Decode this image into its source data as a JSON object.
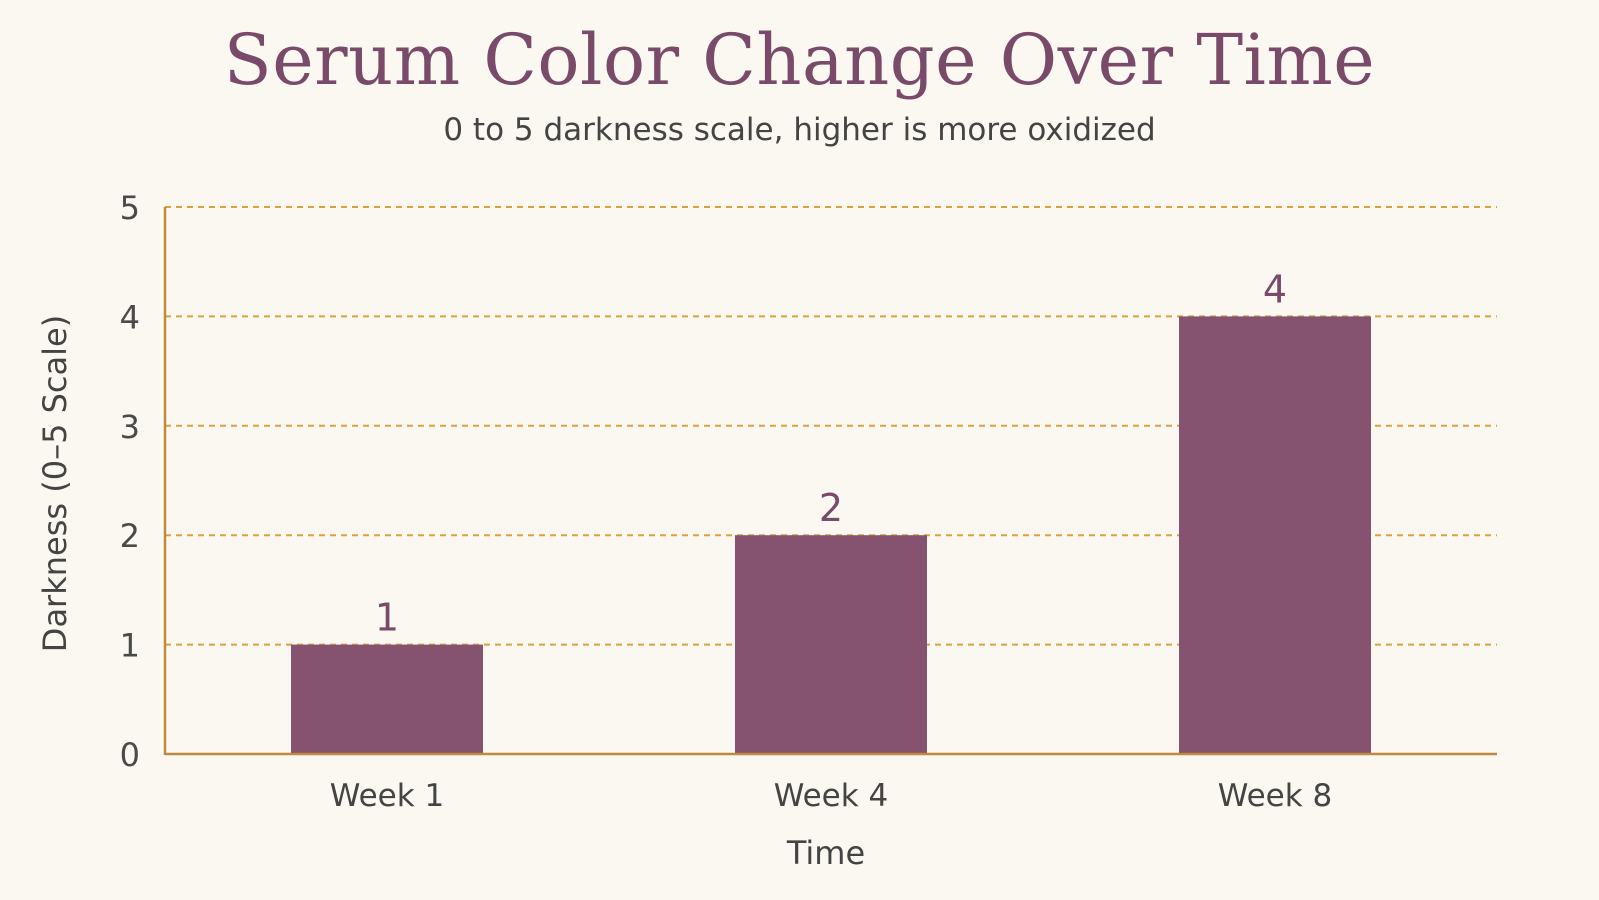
{
  "chart_data": {
    "type": "bar",
    "title": "Serum Color Change Over Time",
    "subtitle": "0 to 5 darkness scale, higher is more oxidized",
    "categories": [
      "Week 1",
      "Week 4",
      "Week 8"
    ],
    "values": [
      1,
      2,
      4
    ],
    "data_labels": [
      "1",
      "2",
      "4"
    ],
    "xlabel": "Time",
    "ylabel": "Darkness (0–5 Scale)",
    "ylim": [
      0,
      5
    ],
    "yticks": [
      "0",
      "1",
      "2",
      "3",
      "4",
      "5"
    ],
    "grid": true,
    "legend": "none"
  },
  "colors": {
    "background": "#fbf8f1",
    "bar": "#855370",
    "title": "#7a4a6a",
    "axis": "#c08a3e",
    "grid": "#d9a23f",
    "text": "#444444"
  }
}
